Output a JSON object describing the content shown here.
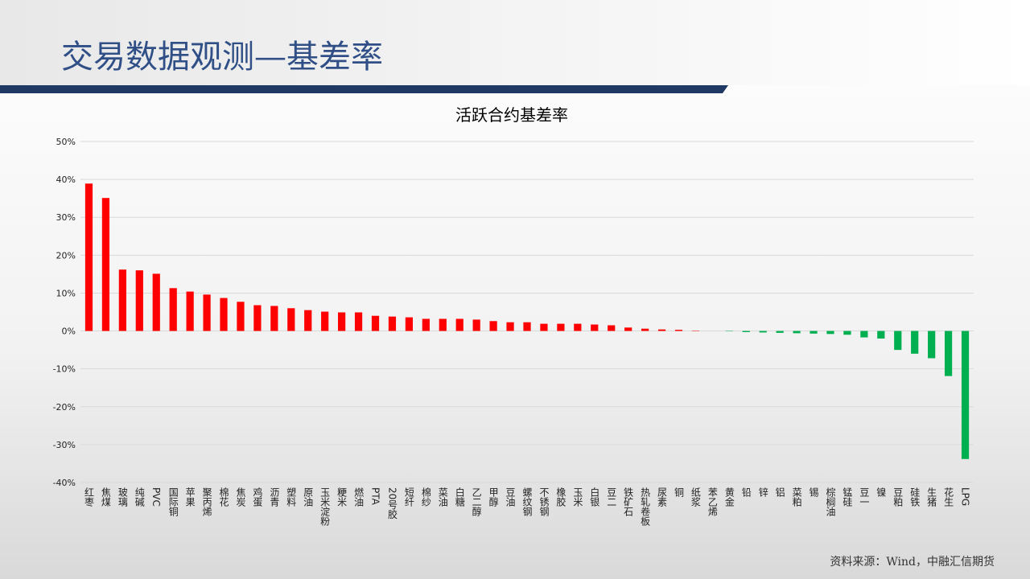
{
  "slide": {
    "title": "交易数据观测—基差率",
    "source": "资料来源：Wind，中融汇信期货"
  },
  "chart_data": {
    "type": "bar",
    "title": "活跃合约基差率",
    "categories": [
      "红枣",
      "焦煤",
      "玻璃",
      "纯碱",
      "PVC",
      "国际铜",
      "苹果",
      "聚丙烯",
      "棉花",
      "焦炭",
      "鸡蛋",
      "沥青",
      "塑料",
      "原油",
      "玉米淀粉",
      "粳米",
      "燃油",
      "PTA",
      "20号胶",
      "短纤",
      "棉纱",
      "菜油",
      "白糖",
      "乙二醇",
      "甲醇",
      "豆油",
      "螺纹钢",
      "不锈钢",
      "橡胶",
      "玉米",
      "白银",
      "豆二",
      "铁矿石",
      "热轧卷板",
      "尿素",
      "铜",
      "纸浆",
      "苯乙烯",
      "黄金",
      "铅",
      "锌",
      "铝",
      "菜粕",
      "锡",
      "棕榈油",
      "锰硅",
      "豆一",
      "镍",
      "豆粕",
      "硅铁",
      "生猪",
      "花生",
      "LPG"
    ],
    "values": [
      38.9,
      35.1,
      16.2,
      16.0,
      15.1,
      11.3,
      10.4,
      9.6,
      8.7,
      7.7,
      6.8,
      6.6,
      6.0,
      5.5,
      5.1,
      4.9,
      4.9,
      4.0,
      3.8,
      3.6,
      3.2,
      3.2,
      3.2,
      3.0,
      2.6,
      2.3,
      2.3,
      1.9,
      1.9,
      1.9,
      1.7,
      1.5,
      0.9,
      0.6,
      0.4,
      0.3,
      0.1,
      0.0,
      -0.1,
      -0.3,
      -0.4,
      -0.5,
      -0.6,
      -0.7,
      -0.8,
      -1.0,
      -1.7,
      -2.0,
      -5.0,
      -6.0,
      -7.2,
      -11.9,
      -33.8
    ],
    "positive_color": "#ff0000",
    "negative_color": "#00b050",
    "ylim": [
      -40,
      50
    ],
    "yticks": [
      {
        "value": -40,
        "label": "-40%"
      },
      {
        "value": -30,
        "label": "-30%"
      },
      {
        "value": -20,
        "label": "-20%"
      },
      {
        "value": -10,
        "label": "-10%"
      },
      {
        "value": 0,
        "label": "0%"
      },
      {
        "value": 10,
        "label": "10%"
      },
      {
        "value": 20,
        "label": "20%"
      },
      {
        "value": 30,
        "label": "30%"
      },
      {
        "value": 40,
        "label": "40%"
      },
      {
        "value": 50,
        "label": "50%"
      }
    ],
    "grid": true
  }
}
